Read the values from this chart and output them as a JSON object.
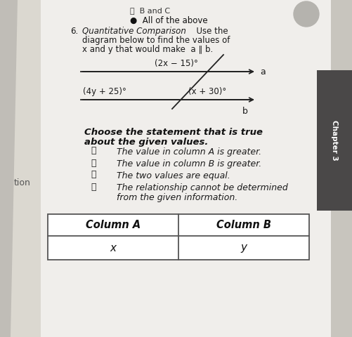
{
  "bg_color": "#c8c5be",
  "paper_color": "#f0eeeb",
  "left_bg": "#b8b5ae",
  "chapter_tab_color": "#4a4a4a",
  "chapter_label": "Chapter 3",
  "left_label": "tion",
  "top_d_text": "ⓓ  B and C",
  "top_bullet_text": "●  All of the above",
  "q_num": "6.",
  "q_italic": "Quantitative Comparison",
  "q_rest1": "  Use the",
  "q_rest2": "diagram below to find the values of",
  "q_rest3": "x and y that would make  a ∥ b.",
  "line_a_angle_label": "(2x − 15)°",
  "line_a_tag": "a",
  "line_b_label1": "(4y + 25)°",
  "line_b_label2": "(x + 30)°",
  "line_b_tag": "b",
  "choose1": "Choose the statement that is true",
  "choose2": "about the given values.",
  "choice_A": "Ⓐ",
  "choice_A_text": "  The value in column A is greater.",
  "choice_B": "Ⓑ",
  "choice_B_text": "  The value in column B is greater.",
  "choice_C": "Ⓒ",
  "choice_C_text": "  The two values are equal.",
  "choice_D": "Ⓓ",
  "choice_D_text1": "  The relationship cannot be determined",
  "choice_D_text2": "  from the given information.",
  "col_a_header": "Column A",
  "col_b_header": "Column B",
  "col_a_val": "x",
  "col_b_val": "y",
  "circle_color": "#b0aeaa"
}
